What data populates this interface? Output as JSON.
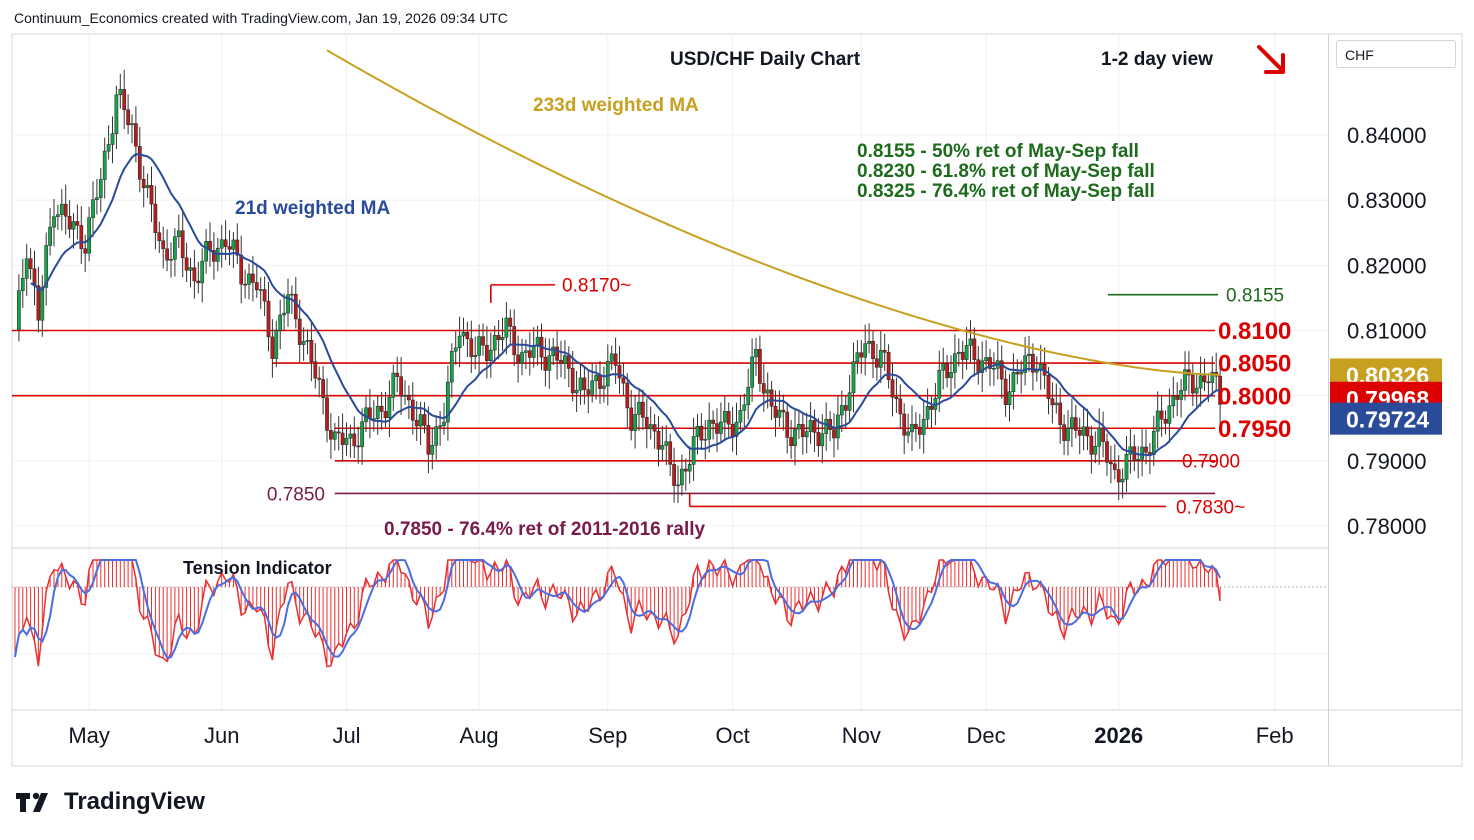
{
  "header": {
    "credit": "Continuum_Economics created with TradingView.com, Jan 19, 2026 09:34 UTC"
  },
  "brand": {
    "name": "TradingView"
  },
  "price_axis": {
    "unit": "CHF"
  },
  "colors": {
    "up": "#16a34a",
    "down": "#b91c1c",
    "level": "#dd0000",
    "ma233": "#c8a020",
    "ma21": "#2a4a9a",
    "level_8155": "#1d6b1d",
    "level_7850": "#7a1a4a",
    "tension": "#e83030",
    "tension_signal": "#4a6ee0"
  },
  "chart_data": {
    "type": "candlestick",
    "title": "USD/CHF Daily Chart",
    "view_label": "1-2 day view",
    "view_direction": "down",
    "x_labels": [
      "May",
      "Jun",
      "Jul",
      "Aug",
      "Sep",
      "Oct",
      "Nov",
      "Dec",
      "2026",
      "Feb"
    ],
    "y_ticks": [
      0.78,
      0.79,
      0.8,
      0.81,
      0.82,
      0.83,
      0.84
    ],
    "y_tick_labels": [
      "0.78000",
      "0.79000",
      "0.80000",
      "0.81000",
      "0.82000",
      "0.83000",
      "0.84000"
    ],
    "ylim": [
      0.7762,
      0.8518
    ],
    "grid": true,
    "price_tags": [
      {
        "label": "0.80326",
        "value": 0.80326,
        "color": "#c8a020"
      },
      {
        "label": "0.79968",
        "value": 0.79968,
        "color": "#dd0000"
      },
      {
        "label": "0.79724",
        "value": 0.79724,
        "color": "#2a4a9a"
      }
    ],
    "levels": [
      {
        "value": 0.81,
        "label": "0.8100",
        "extent": "full",
        "color": "#dd0000",
        "big": true
      },
      {
        "value": 0.805,
        "label": "0.8050",
        "extent": "from-jun",
        "color": "#dd0000",
        "big": true
      },
      {
        "value": 0.8,
        "label": "0.8000",
        "extent": "full",
        "color": "#dd0000",
        "big": true
      },
      {
        "value": 0.795,
        "label": "0.7950",
        "extent": "from-jul",
        "color": "#dd0000",
        "big": true
      },
      {
        "value": 0.79,
        "label": "0.7900",
        "extent": "from-jul",
        "color": "#dd0000",
        "big": false
      },
      {
        "value": 0.785,
        "label": "0.7850",
        "extent": "from-jul",
        "color": "#7a1a4a",
        "big": false
      },
      {
        "value": 0.783,
        "label": "0.7830~",
        "extent": "from-sep",
        "color": "#dd0000",
        "big": false
      },
      {
        "value": 0.817,
        "label": "0.8170~",
        "extent": "aug-short",
        "color": "#dd0000",
        "big": false
      },
      {
        "value": 0.8155,
        "label": "0.8155",
        "extent": "dec-short",
        "color": "#1d6b1d",
        "big": false
      }
    ],
    "retracements": [
      "0.8155 - 50% ret of May-Sep fall",
      "0.8230 - 61.8% ret of May-Sep fall",
      "0.8325 - 76.4% ret of May-Sep fall"
    ],
    "long_term_note": "0.7850 - 76.4% ret of 2011-2016 rally",
    "series": [
      {
        "name": "233d weighted MA"
      },
      {
        "name": "21d weighted MA"
      }
    ],
    "indicator": {
      "name": "Tension Indicator"
    },
    "close_path": [
      [
        0,
        0.809
      ],
      [
        3,
        0.8235
      ],
      [
        6,
        0.812
      ],
      [
        10,
        0.83
      ],
      [
        14,
        0.826
      ],
      [
        18,
        0.824
      ],
      [
        22,
        0.833
      ],
      [
        26,
        0.846
      ],
      [
        30,
        0.841
      ],
      [
        34,
        0.83
      ],
      [
        38,
        0.822
      ],
      [
        42,
        0.823
      ],
      [
        46,
        0.818
      ],
      [
        50,
        0.822
      ],
      [
        54,
        0.824
      ],
      [
        58,
        0.819
      ],
      [
        62,
        0.817
      ],
      [
        66,
        0.808
      ],
      [
        70,
        0.815
      ],
      [
        74,
        0.809
      ],
      [
        78,
        0.801
      ],
      [
        82,
        0.793
      ],
      [
        86,
        0.793
      ],
      [
        90,
        0.796
      ],
      [
        94,
        0.798
      ],
      [
        98,
        0.802
      ],
      [
        102,
        0.798
      ],
      [
        106,
        0.792
      ],
      [
        110,
        0.7975
      ],
      [
        114,
        0.811
      ],
      [
        118,
        0.806
      ],
      [
        122,
        0.808
      ],
      [
        126,
        0.81
      ],
      [
        130,
        0.806
      ],
      [
        134,
        0.807
      ],
      [
        138,
        0.806
      ],
      [
        142,
        0.804
      ],
      [
        146,
        0.8
      ],
      [
        150,
        0.803
      ],
      [
        154,
        0.805
      ],
      [
        158,
        0.797
      ],
      [
        162,
        0.796
      ],
      [
        166,
        0.793
      ],
      [
        168,
        0.788
      ],
      [
        170,
        0.787
      ],
      [
        174,
        0.792
      ],
      [
        178,
        0.796
      ],
      [
        182,
        0.795
      ],
      [
        186,
        0.797
      ],
      [
        190,
        0.806
      ],
      [
        194,
        0.798
      ],
      [
        198,
        0.795
      ],
      [
        202,
        0.794
      ],
      [
        206,
        0.795
      ],
      [
        210,
        0.794
      ],
      [
        214,
        0.802
      ],
      [
        218,
        0.808
      ],
      [
        222,
        0.806
      ],
      [
        226,
        0.799
      ],
      [
        230,
        0.793
      ],
      [
        234,
        0.798
      ],
      [
        238,
        0.803
      ],
      [
        242,
        0.807
      ],
      [
        246,
        0.806
      ],
      [
        250,
        0.805
      ],
      [
        254,
        0.801
      ],
      [
        258,
        0.804
      ],
      [
        262,
        0.806
      ],
      [
        266,
        0.798
      ],
      [
        270,
        0.795
      ],
      [
        274,
        0.794
      ],
      [
        278,
        0.793
      ],
      [
        282,
        0.788
      ],
      [
        286,
        0.79
      ],
      [
        290,
        0.792
      ],
      [
        294,
        0.796
      ],
      [
        298,
        0.801
      ],
      [
        302,
        0.802
      ],
      [
        306,
        0.803
      ],
      [
        309,
        0.7997
      ]
    ]
  }
}
